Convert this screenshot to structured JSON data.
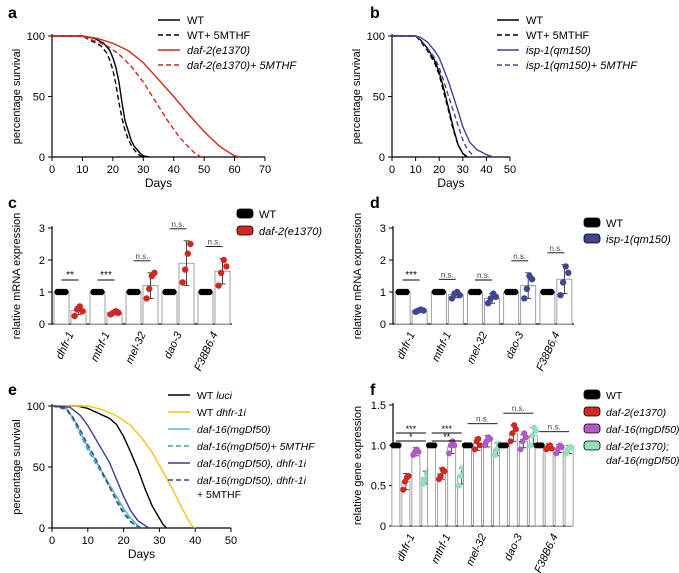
{
  "chart_data": [
    {
      "id": "a",
      "type": "line",
      "panel_label": "a",
      "xlabel": "Days",
      "ylabel": "percentage survival",
      "xlim": [
        0,
        70
      ],
      "ylim": [
        0,
        100
      ],
      "xticks": [
        "0",
        "10",
        "20",
        "30",
        "40",
        "50",
        "60",
        "70"
      ],
      "yticks": [
        "0",
        "50",
        "100"
      ],
      "series": [
        {
          "name": "WT",
          "color": "#000000",
          "dash": false,
          "italic": false,
          "x": [
            0,
            10,
            14,
            17,
            19,
            20,
            21,
            22,
            23,
            24,
            25,
            26,
            27,
            28,
            29,
            30,
            31,
            32
          ],
          "y": [
            100,
            100,
            98,
            94,
            88,
            82,
            74,
            62,
            45,
            30,
            22,
            14,
            9,
            6,
            3,
            1,
            0.5,
            0
          ]
        },
        {
          "name": "WT+ 5MTHF",
          "color": "#000000",
          "dash": true,
          "italic": false,
          "x": [
            0,
            10,
            13,
            16,
            18,
            19,
            20,
            21,
            22,
            23,
            24,
            25,
            26,
            27,
            28,
            29,
            30
          ],
          "y": [
            100,
            100,
            96,
            92,
            86,
            80,
            72,
            60,
            45,
            32,
            22,
            15,
            10,
            6,
            3,
            1,
            0
          ]
        },
        {
          "name": "daf-2(e1370)",
          "color": "#D2261E",
          "dash": false,
          "italic": true,
          "x": [
            0,
            10,
            15,
            20,
            25,
            30,
            35,
            40,
            45,
            50,
            55,
            58,
            60,
            62
          ],
          "y": [
            100,
            100,
            98,
            94,
            88,
            78,
            64,
            50,
            35,
            21,
            9,
            4,
            1,
            0
          ]
        },
        {
          "name": "daf-2(e1370)+ 5MTHF",
          "color": "#D2261E",
          "dash": true,
          "italic": true,
          "x": [
            0,
            10,
            14,
            18,
            22,
            26,
            30,
            34,
            38,
            42,
            45,
            47,
            49
          ],
          "y": [
            100,
            100,
            96,
            92,
            85,
            75,
            62,
            46,
            30,
            16,
            8,
            3,
            0
          ]
        }
      ]
    },
    {
      "id": "b",
      "type": "line",
      "panel_label": "b",
      "xlabel": "Days",
      "ylabel": "percentage survival",
      "xlim": [
        0,
        50
      ],
      "ylim": [
        0,
        100
      ],
      "xticks": [
        "0",
        "10",
        "20",
        "30",
        "40",
        "50"
      ],
      "yticks": [
        "0",
        "50",
        "100"
      ],
      "series": [
        {
          "name": "WT",
          "color": "#000000",
          "dash": false,
          "italic": false,
          "x": [
            0,
            10,
            12,
            15,
            18,
            20,
            22,
            24,
            26,
            28,
            30,
            31,
            32
          ],
          "y": [
            100,
            100,
            97,
            90,
            80,
            70,
            56,
            40,
            24,
            10,
            3,
            1,
            0
          ]
        },
        {
          "name": "WT+ 5MTHF",
          "color": "#000000",
          "dash": true,
          "italic": false,
          "x": [
            0,
            10,
            12,
            15,
            18,
            20,
            22,
            24,
            26,
            28,
            30,
            32
          ],
          "y": [
            100,
            100,
            96,
            88,
            78,
            68,
            53,
            38,
            22,
            10,
            3,
            0
          ]
        },
        {
          "name": "isp-1(qm150)",
          "color": "#40458E",
          "dash": false,
          "italic": true,
          "x": [
            0,
            10,
            12,
            15,
            18,
            20,
            22,
            24,
            26,
            28,
            30,
            33,
            36,
            38,
            40,
            43
          ],
          "y": [
            100,
            100,
            99,
            95,
            88,
            82,
            72,
            62,
            50,
            38,
            25,
            12,
            6,
            4,
            2,
            0
          ]
        },
        {
          "name": "isp-1(qm150)+ 5MTHF",
          "color": "#40458E",
          "dash": true,
          "italic": true,
          "x": [
            0,
            10,
            12,
            15,
            18,
            20,
            22,
            24,
            26,
            28,
            30,
            32,
            34,
            35
          ],
          "y": [
            100,
            100,
            97,
            90,
            82,
            74,
            62,
            50,
            38,
            26,
            14,
            6,
            2,
            0
          ]
        }
      ]
    },
    {
      "id": "c",
      "type": "bar",
      "panel_label": "c",
      "ylabel": "relative mRNA expression",
      "ylim": [
        0,
        3
      ],
      "yticks": [
        "0",
        "1",
        "2",
        "3"
      ],
      "categories": [
        "dhfr-1",
        "mthf-1",
        "mel-32",
        "dao-3",
        "F38B6.4"
      ],
      "significance": [
        "**",
        "***",
        "n.s.",
        "n.s.",
        "n.s."
      ],
      "series": [
        {
          "name": "WT",
          "color": "#000000",
          "values": [
            1,
            1,
            1,
            1,
            1
          ],
          "errors": [
            0,
            0,
            0,
            0,
            0
          ],
          "points": [
            [
              1,
              1,
              1,
              1
            ],
            [
              1,
              1,
              1,
              1
            ],
            [
              1,
              1,
              1,
              1
            ],
            [
              1,
              1,
              1,
              1
            ],
            [
              1,
              1,
              1,
              1
            ]
          ]
        },
        {
          "name": "daf-2(e1370)",
          "color": "#D2261E",
          "values": [
            0.42,
            0.35,
            1.2,
            1.9,
            1.65
          ],
          "errors": [
            0.13,
            0.05,
            0.4,
            0.7,
            0.4
          ],
          "points": [
            [
              0.25,
              0.45,
              0.55,
              0.4
            ],
            [
              0.3,
              0.35,
              0.4,
              0.35
            ],
            [
              0.8,
              1.1,
              1.5,
              1.6
            ],
            [
              1.3,
              1.7,
              2.2,
              2.5
            ],
            [
              1.2,
              1.6,
              2.0,
              1.8
            ]
          ]
        }
      ],
      "legend": [
        "WT",
        "daf-2(e1370)"
      ]
    },
    {
      "id": "d",
      "type": "bar",
      "panel_label": "d",
      "ylabel": "relative mRNA expression",
      "ylim": [
        0,
        3
      ],
      "yticks": [
        "0",
        "1",
        "2",
        "3"
      ],
      "categories": [
        "dhfr-1",
        "mthf-1",
        "mel-32",
        "dao-3",
        "F38B6.4"
      ],
      "significance": [
        "***",
        "n.s.",
        "n.s.",
        "n.s.",
        "n.s."
      ],
      "series": [
        {
          "name": "WT",
          "color": "#000000",
          "values": [
            1,
            1,
            1,
            1,
            1
          ],
          "errors": [
            0,
            0,
            0,
            0,
            0
          ],
          "points": [
            [
              1,
              1,
              1,
              1
            ],
            [
              1,
              1,
              1,
              1
            ],
            [
              1,
              1,
              1,
              1
            ],
            [
              1,
              1,
              1,
              1
            ],
            [
              1,
              1,
              1,
              1
            ]
          ]
        },
        {
          "name": "isp-1(qm150)",
          "color": "#40458E",
          "values": [
            0.42,
            0.92,
            0.8,
            1.2,
            1.4
          ],
          "errors": [
            0.04,
            0.1,
            0.15,
            0.4,
            0.45
          ],
          "points": [
            [
              0.38,
              0.42,
              0.45,
              0.42
            ],
            [
              0.8,
              0.95,
              1.0,
              0.9
            ],
            [
              0.65,
              0.8,
              0.95,
              0.85
            ],
            [
              0.8,
              1.1,
              1.5,
              1.4
            ],
            [
              0.9,
              1.3,
              1.8,
              1.6
            ]
          ]
        }
      ],
      "legend": [
        "WT",
        "isp-1(qm150)"
      ]
    },
    {
      "id": "e",
      "type": "line",
      "panel_label": "e",
      "xlabel": "Days",
      "ylabel": "percentage survival",
      "xlim": [
        0,
        50
      ],
      "ylim": [
        0,
        100
      ],
      "xticks": [
        "0",
        "10",
        "20",
        "30",
        "40",
        "50"
      ],
      "yticks": [
        "0",
        "50",
        "100"
      ],
      "series": [
        {
          "name": "WT",
          "name_suffix": "luci",
          "color": "#000000",
          "dash": false,
          "italic": false,
          "x": [
            0,
            7,
            10,
            13,
            16,
            18,
            20,
            22,
            24,
            26,
            28,
            30,
            31,
            32
          ],
          "y": [
            100,
            100,
            98,
            94,
            90,
            85,
            75,
            62,
            48,
            32,
            18,
            8,
            3,
            0
          ]
        },
        {
          "name": "WT",
          "name_suffix": "dhfr-1i",
          "color": "#F2C21C",
          "dash": false,
          "italic": false,
          "x": [
            0,
            10,
            14,
            18,
            22,
            25,
            28,
            31,
            34,
            36,
            38,
            39,
            40
          ],
          "y": [
            100,
            100,
            97,
            92,
            84,
            74,
            62,
            46,
            30,
            18,
            7,
            2,
            0
          ]
        },
        {
          "name": "daf-16(mgDf50)",
          "color": "#5BB8D9",
          "dash": false,
          "italic": true,
          "x": [
            0,
            4,
            6,
            8,
            10,
            12,
            14,
            16,
            18,
            20,
            22,
            24,
            25
          ],
          "y": [
            100,
            98,
            90,
            78,
            66,
            56,
            46,
            36,
            26,
            16,
            8,
            2,
            0
          ]
        },
        {
          "name": "daf-16(mgDf50)+ 5MTHF",
          "color": "#3EA59D",
          "dash": true,
          "italic": true,
          "x": [
            0,
            4,
            6,
            8,
            10,
            12,
            14,
            16,
            18,
            20,
            22,
            24
          ],
          "y": [
            100,
            97,
            88,
            76,
            64,
            54,
            44,
            34,
            24,
            14,
            6,
            0
          ]
        },
        {
          "name": "daf-16(mgDf50), dhfr-1i",
          "color": "#3A3F8F",
          "dash": false,
          "italic": true,
          "x": [
            0,
            5,
            8,
            10,
            12,
            14,
            16,
            18,
            20,
            22,
            24,
            26,
            27
          ],
          "y": [
            100,
            99,
            92,
            84,
            74,
            64,
            54,
            40,
            26,
            14,
            6,
            2,
            0
          ]
        },
        {
          "name": "daf-16(mgDf50), dhfr-1i",
          "name_suffix": "+ 5MTHF",
          "color": "#3A3F8F",
          "dash": true,
          "italic": true,
          "x": [
            0,
            4,
            6,
            8,
            10,
            12,
            14,
            16,
            18,
            20,
            22,
            24,
            25
          ],
          "y": [
            100,
            98,
            90,
            80,
            68,
            58,
            46,
            34,
            22,
            12,
            5,
            1,
            0
          ]
        }
      ]
    },
    {
      "id": "f",
      "type": "bar",
      "panel_label": "f",
      "ylabel": "relative gene expression",
      "ylim": [
        0,
        1.5
      ],
      "yticks": [
        "0",
        "0.5",
        "1.0",
        "1.5"
      ],
      "categories": [
        "dhfr-1",
        "mthf-1",
        "mel-32",
        "dao-3",
        "F38B6.4"
      ],
      "significance": [
        [
          "***",
          "*"
        ],
        [
          "***",
          "**"
        ],
        "n.s.",
        "n.s.",
        "n.s."
      ],
      "series": [
        {
          "name": "WT",
          "color": "#000000",
          "values": [
            1,
            1,
            1,
            1,
            1
          ],
          "errors": [
            0,
            0,
            0,
            0,
            0
          ],
          "points": [
            [
              1,
              1,
              1,
              1
            ],
            [
              1,
              1,
              1,
              1
            ],
            [
              1,
              1,
              1,
              1
            ],
            [
              1,
              1,
              1,
              1
            ],
            [
              1,
              1,
              1,
              1
            ]
          ]
        },
        {
          "name": "daf-2(e1370)",
          "color": "#D2261E",
          "values": [
            0.55,
            0.65,
            1.02,
            1.15,
            0.98
          ],
          "errors": [
            0.1,
            0.07,
            0.08,
            0.1,
            0.04
          ],
          "points": [
            [
              0.45,
              0.55,
              0.6,
              0.62
            ],
            [
              0.58,
              0.62,
              0.7,
              0.68
            ],
            [
              0.95,
              1.05,
              1.08,
              1.0
            ],
            [
              1.05,
              1.15,
              1.25,
              1.2
            ],
            [
              0.95,
              0.98,
              1.0,
              0.96
            ]
          ]
        },
        {
          "name": "daf-16(mgDf50)",
          "color": "#B258C8",
          "values": [
            0.92,
            0.98,
            1.05,
            1.05,
            0.96
          ],
          "errors": [
            0.05,
            0.08,
            0.07,
            0.08,
            0.05
          ],
          "points": [
            [
              0.88,
              0.92,
              0.95,
              0.92
            ],
            [
              0.9,
              1.0,
              1.05,
              1.0
            ],
            [
              1.0,
              1.05,
              1.1,
              1.08
            ],
            [
              0.95,
              1.05,
              1.15,
              1.1
            ],
            [
              0.9,
              0.96,
              1.0,
              0.98
            ]
          ]
        },
        {
          "name": "daf-2(e1370); daf-16(mgDf50)",
          "color": "#8FE0BC",
          "values": [
            0.6,
            0.62,
            0.95,
            1.12,
            0.95
          ],
          "errors": [
            0.08,
            0.1,
            0.08,
            0.1,
            0.05
          ],
          "points": [
            [
              0.52,
              0.58,
              0.65,
              0.68
            ],
            [
              0.5,
              0.62,
              0.72,
              0.65
            ],
            [
              0.88,
              0.95,
              1.02,
              0.98
            ],
            [
              1.0,
              1.12,
              1.22,
              1.18
            ],
            [
              0.9,
              0.95,
              0.98,
              0.97
            ]
          ]
        }
      ],
      "legend": [
        "WT",
        "daf-2(e1370)",
        "daf-16(mgDf50)",
        "daf-2(e1370); daf-16(mgDf50)"
      ]
    }
  ]
}
